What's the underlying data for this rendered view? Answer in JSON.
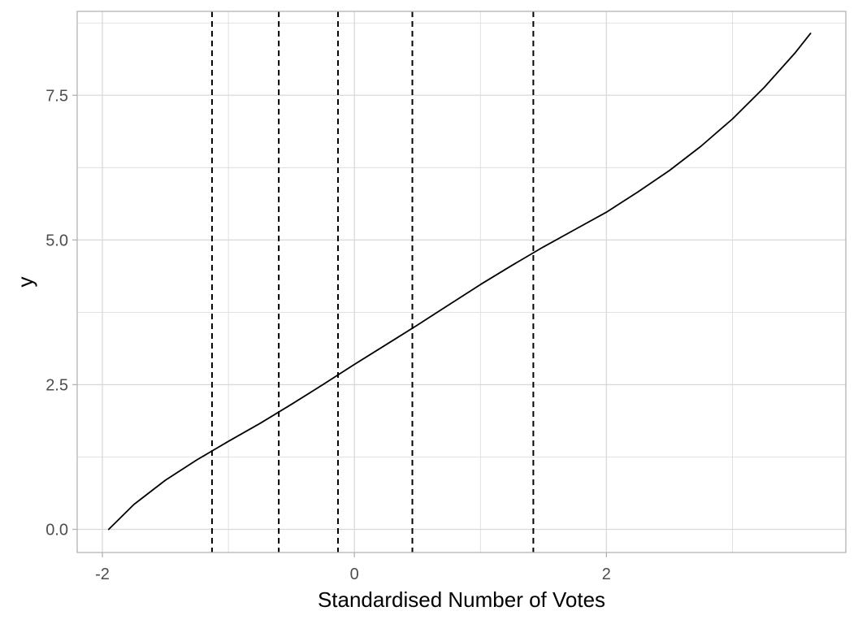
{
  "chart_data": {
    "type": "line",
    "title": "",
    "xlabel": "Standardised Number of Votes",
    "ylabel": "y",
    "xlim": [
      -2.2,
      3.9
    ],
    "ylim": [
      -0.4,
      8.95
    ],
    "x_ticks": [
      -2,
      0,
      2
    ],
    "x_tick_labels": [
      "-2",
      "0",
      "2"
    ],
    "y_ticks": [
      0,
      2.5,
      5,
      7.5
    ],
    "y_tick_labels": [
      "0.0",
      "2.5",
      "5.0",
      "7.5"
    ],
    "x_minor_gridlines": [
      -1,
      1,
      3
    ],
    "y_minor_gridlines": [
      1.25,
      3.75,
      6.25,
      8.75
    ],
    "grid": true,
    "legend": "none",
    "series": [
      {
        "x": [
          -1.95,
          -1.75,
          -1.5,
          -1.25,
          -1.0,
          -0.75,
          -0.5,
          -0.25,
          0.0,
          0.25,
          0.5,
          0.75,
          1.0,
          1.25,
          1.5,
          1.75,
          2.0,
          2.25,
          2.5,
          2.75,
          3.0,
          3.25,
          3.5,
          3.62
        ],
        "y": [
          0.0,
          0.43,
          0.85,
          1.2,
          1.52,
          1.83,
          2.16,
          2.5,
          2.85,
          3.19,
          3.53,
          3.88,
          4.23,
          4.56,
          4.88,
          5.18,
          5.48,
          5.83,
          6.2,
          6.62,
          7.09,
          7.63,
          8.24,
          8.57
        ]
      }
    ],
    "vlines": [
      -1.13,
      -0.6,
      -0.13,
      0.46,
      1.42
    ],
    "colors": {
      "line": "#000000",
      "vline": "#000000",
      "grid": "#d9d9d9",
      "panel_border": "#b3b3b3",
      "tick_label": "#4d4d4d",
      "background": "#ffffff"
    }
  }
}
